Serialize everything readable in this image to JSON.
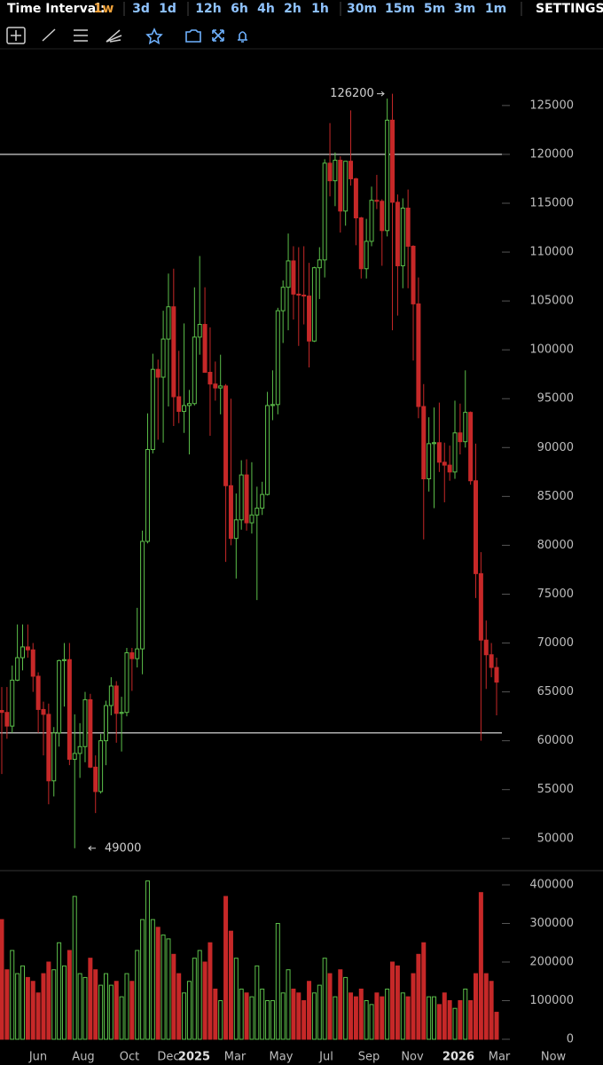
{
  "toolbar": {
    "label": "Time Interval:",
    "intervals": [
      "1w",
      "3d",
      "1d",
      "12h",
      "6h",
      "4h",
      "2h",
      "1h",
      "30m",
      "15m",
      "5m",
      "3m",
      "1m"
    ],
    "settings": "SETTINGS"
  },
  "chart_data": {
    "type": "candlestick",
    "up_color": "#5cbf4a",
    "down_color": "#c62828",
    "open": [
      63100,
      62900,
      61500,
      66200,
      68500,
      69600,
      69300,
      66600,
      63200,
      62700,
      55900,
      60800,
      68200,
      68300,
      58100,
      58700,
      59400,
      64200,
      57300,
      54800,
      60000,
      63600,
      65600,
      62800,
      62900,
      69000,
      68400,
      69400,
      80400,
      89800,
      98000,
      97200,
      101100,
      104400,
      95200,
      93700,
      94300,
      94500,
      101300,
      102600,
      97700,
      96500,
      96100,
      96300,
      86100,
      80700,
      82600,
      87200,
      82300,
      83100,
      83800,
      85200,
      94300,
      94400,
      104000,
      106400,
      109100,
      105700,
      105600,
      105500,
      100900,
      108400,
      109200,
      119100,
      117300,
      119400,
      114200,
      119300,
      117500,
      113500,
      108300,
      111100,
      115300,
      115200,
      112200,
      123500,
      115100,
      108600,
      114500,
      110600,
      104700,
      94200,
      86800,
      90400,
      90500,
      88500,
      88200,
      87500,
      91500,
      90600,
      93600,
      86600,
      77100,
      70300,
      68800,
      67500
    ],
    "high": [
      65500,
      65500,
      67700,
      71900,
      71900,
      71900,
      70000,
      67000,
      64000,
      63800,
      61400,
      68300,
      70000,
      70000,
      62700,
      61800,
      65000,
      64800,
      58500,
      60700,
      64100,
      66500,
      66100,
      64500,
      69500,
      69500,
      73600,
      81500,
      93500,
      99600,
      99000,
      104000,
      107800,
      108300,
      99900,
      102700,
      95900,
      106400,
      109600,
      106400,
      102300,
      98800,
      99500,
      96500,
      95000,
      85300,
      88700,
      88800,
      88500,
      86000,
      86500,
      95700,
      97900,
      104300,
      107100,
      111900,
      110600,
      110500,
      110600,
      108900,
      108500,
      110500,
      119500,
      123200,
      120200,
      119800,
      119300,
      124500,
      117600,
      113600,
      113400,
      116700,
      117900,
      115400,
      125700,
      126200,
      115900,
      115500,
      116400,
      110700,
      107400,
      96500,
      93100,
      94100,
      94600,
      90500,
      90200,
      94800,
      94500,
      97900,
      93700,
      90400,
      79300,
      72300,
      70000,
      68500
    ],
    "low": [
      56600,
      60200,
      60800,
      66100,
      67200,
      68500,
      65000,
      60800,
      58500,
      53500,
      54300,
      59400,
      63500,
      57500,
      49000,
      56200,
      57800,
      57200,
      52600,
      54600,
      57500,
      62600,
      59800,
      58900,
      62500,
      65100,
      67500,
      66800,
      80200,
      89400,
      90800,
      90500,
      94200,
      92200,
      92500,
      91500,
      89300,
      94300,
      99500,
      97700,
      91200,
      94800,
      93400,
      78300,
      80000,
      76600,
      81600,
      81500,
      81200,
      74400,
      83100,
      85100,
      92800,
      93400,
      100700,
      102000,
      103100,
      100400,
      102600,
      98200,
      100800,
      105200,
      107400,
      115700,
      114700,
      112000,
      112700,
      116800,
      110700,
      107300,
      107300,
      110600,
      114400,
      108600,
      111600,
      102000,
      103500,
      106300,
      106300,
      98900,
      93000,
      80600,
      85500,
      83800,
      87500,
      84400,
      86600,
      86800,
      89300,
      90000,
      86200,
      74600,
      60000,
      65300,
      66500,
      62600
    ],
    "close": [
      62900,
      61500,
      66200,
      68500,
      69600,
      69300,
      66600,
      63200,
      62700,
      55900,
      60800,
      68200,
      68300,
      58100,
      58700,
      59400,
      64200,
      57300,
      54800,
      60000,
      63600,
      65600,
      62800,
      62900,
      69000,
      68400,
      69400,
      80400,
      89800,
      98000,
      97200,
      101100,
      104400,
      95200,
      93700,
      94300,
      94500,
      101300,
      102600,
      97700,
      96500,
      96100,
      96300,
      86100,
      80700,
      82600,
      87200,
      82300,
      83100,
      83800,
      85200,
      94300,
      94400,
      104000,
      106400,
      109100,
      105700,
      105600,
      105500,
      100900,
      108400,
      109200,
      119100,
      117300,
      119400,
      114200,
      119300,
      117500,
      113500,
      108300,
      111100,
      115300,
      115200,
      112200,
      123500,
      115100,
      108600,
      114500,
      110600,
      104700,
      94200,
      86800,
      90400,
      90500,
      88500,
      88200,
      87500,
      91500,
      90600,
      93600,
      86600,
      77100,
      70300,
      68800,
      67500,
      66000
    ],
    "volume": [
      310000,
      180000,
      230000,
      170000,
      190000,
      160000,
      150000,
      120000,
      170000,
      200000,
      180000,
      250000,
      190000,
      230000,
      370000,
      170000,
      160000,
      210000,
      180000,
      140000,
      170000,
      140000,
      150000,
      110000,
      170000,
      150000,
      230000,
      310000,
      410000,
      310000,
      290000,
      270000,
      260000,
      220000,
      170000,
      120000,
      150000,
      210000,
      230000,
      200000,
      250000,
      130000,
      100000,
      370000,
      280000,
      210000,
      130000,
      120000,
      110000,
      190000,
      130000,
      100000,
      100000,
      300000,
      120000,
      180000,
      130000,
      120000,
      100000,
      150000,
      120000,
      140000,
      210000,
      170000,
      110000,
      180000,
      160000,
      120000,
      110000,
      130000,
      100000,
      90000,
      120000,
      110000,
      130000,
      200000,
      190000,
      120000,
      110000,
      170000,
      220000,
      250000,
      110000,
      110000,
      90000,
      120000,
      100000,
      80000,
      100000,
      130000,
      100000,
      170000,
      380000,
      170000,
      150000,
      70000
    ],
    "ylim": [
      46800,
      130800
    ],
    "yticks": [
      50000,
      55000,
      60000,
      65000,
      70000,
      75000,
      80000,
      85000,
      90000,
      95000,
      100000,
      105000,
      110000,
      115000,
      120000,
      125000
    ],
    "volume_lim": [
      0,
      427600
    ],
    "volume_ticks": [
      0,
      100000,
      200000,
      300000,
      400000
    ],
    "xticks": [
      "Jun",
      "Aug",
      "Oct",
      "Dec",
      "2025",
      "Mar",
      "May",
      "Jul",
      "Sep",
      "Nov",
      "2026",
      "Mar",
      "Now"
    ],
    "hlines": [
      120000,
      60800
    ],
    "hline_color": "#e8e8e8",
    "high_label": 126200,
    "low_label": 49000
  }
}
